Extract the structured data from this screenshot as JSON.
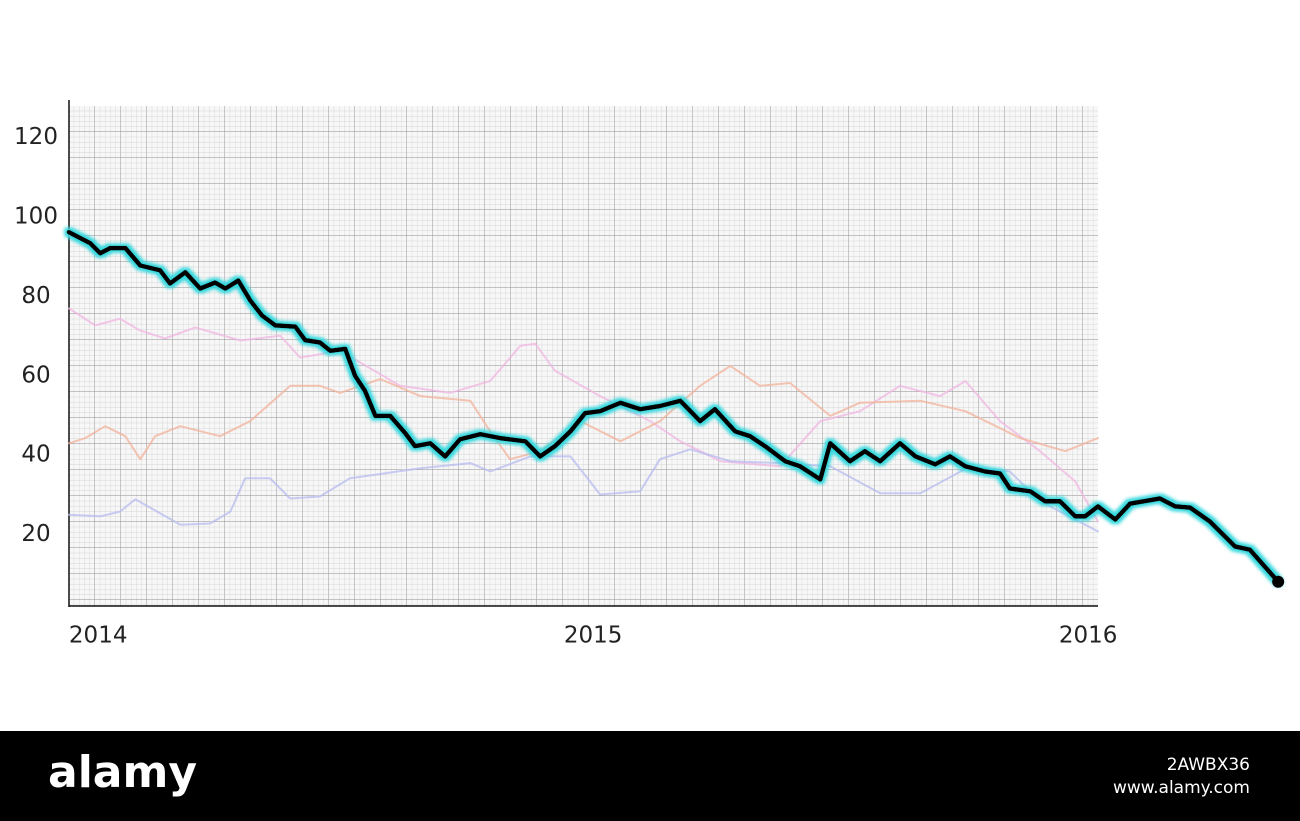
{
  "chart_data": {
    "type": "line",
    "xlim": [
      2013.941,
      2016.02
    ],
    "ylim": [
      2,
      128
    ],
    "xticks": [
      2014,
      2015,
      2016
    ],
    "yticks": [
      20,
      40,
      60,
      80,
      100,
      120
    ],
    "series": [
      {
        "color": "#f0b6e2",
        "x": [
          2013.941,
          2013.994,
          2014.044,
          2014.085,
          2014.135,
          2014.196,
          2014.287,
          2014.368,
          2014.408,
          2014.489,
          2014.61,
          2014.711,
          2014.792,
          2014.853,
          2014.883,
          2014.923,
          2015.014,
          2015.115,
          2015.176,
          2015.257,
          2015.378,
          2015.459,
          2015.539,
          2015.62,
          2015.701,
          2015.752,
          2015.822,
          2015.903,
          2015.974,
          2016.02
        ],
        "values": [
          77,
          72.7,
          74.4,
          71.4,
          69.4,
          72.2,
          68.9,
          70.1,
          64.6,
          66.3,
          57.5,
          55.7,
          58.7,
          67.6,
          68.1,
          61.3,
          54.9,
          48.6,
          43.5,
          38.5,
          37.2,
          48.6,
          51.1,
          57.5,
          54.9,
          58.7,
          48.6,
          41,
          33.4,
          23.3
        ]
      },
      {
        "color": "#f3b29a",
        "x": [
          2013.941,
          2013.974,
          2014.014,
          2014.055,
          2014.085,
          2014.115,
          2014.166,
          2014.246,
          2014.307,
          2014.388,
          2014.448,
          2014.489,
          2014.57,
          2014.651,
          2014.752,
          2014.792,
          2014.832,
          2014.893,
          2014.974,
          2015.055,
          2015.135,
          2015.216,
          2015.277,
          2015.337,
          2015.398,
          2015.479,
          2015.539,
          2015.661,
          2015.752,
          2015.863,
          2015.954,
          2016.02
        ],
        "values": [
          43,
          44.3,
          47.3,
          44.8,
          39,
          44.8,
          47.3,
          44.8,
          48.6,
          57.5,
          57.5,
          55.7,
          59.2,
          54.9,
          53.7,
          46,
          39,
          41,
          48.6,
          43.5,
          48.6,
          57.5,
          62.5,
          57.5,
          58.2,
          49.9,
          53.2,
          53.7,
          51.1,
          44.3,
          41,
          44.3
        ]
      },
      {
        "color": "#b7bbef",
        "x": [
          2013.941,
          2014.004,
          2014.044,
          2014.075,
          2014.166,
          2014.226,
          2014.267,
          2014.297,
          2014.347,
          2014.388,
          2014.448,
          2014.509,
          2014.651,
          2014.752,
          2014.792,
          2014.873,
          2014.954,
          2015.014,
          2015.095,
          2015.135,
          2015.196,
          2015.277,
          2015.378,
          2015.479,
          2015.58,
          2015.661,
          2015.762,
          2015.842,
          2015.903,
          2016.02
        ],
        "values": [
          25,
          24.6,
          25.8,
          28.9,
          22.5,
          22.8,
          25.8,
          34.2,
          34.2,
          29.1,
          29.6,
          34.2,
          36.7,
          38,
          35.9,
          39.7,
          39.7,
          30.1,
          30.9,
          39,
          41.5,
          38.5,
          38,
          37.2,
          30.4,
          30.4,
          37.2,
          35.9,
          28.4,
          20.8
        ]
      },
      {
        "color": "#000000",
        "glow": "#35d8de",
        "x": [
          2013.941,
          2013.984,
          2014.004,
          2014.024,
          2014.055,
          2014.085,
          2014.125,
          2014.145,
          2014.176,
          2014.206,
          2014.236,
          2014.257,
          2014.283,
          2014.307,
          2014.331,
          2014.358,
          2014.398,
          2014.418,
          2014.448,
          2014.469,
          2014.499,
          2014.519,
          2014.539,
          2014.56,
          2014.59,
          2014.62,
          2014.64,
          2014.671,
          2014.701,
          2014.731,
          2014.772,
          2014.812,
          2014.863,
          2014.893,
          2014.923,
          2014.954,
          2014.984,
          2015.014,
          2015.055,
          2015.095,
          2015.135,
          2015.176,
          2015.216,
          2015.246,
          2015.287,
          2015.317,
          2015.347,
          2015.388,
          2015.418,
          2015.459,
          2015.479,
          2015.519,
          2015.549,
          2015.58,
          2015.62,
          2015.651,
          2015.691,
          2015.721,
          2015.752,
          2015.792,
          2015.822,
          2015.842,
          2015.883,
          2015.913,
          2015.943,
          2015.974,
          2015.994,
          2016.02,
          2016.055,
          2016.085,
          2016.145,
          2016.176,
          2016.206,
          2016.246,
          2016.297,
          2016.327,
          2016.384
        ],
        "values": [
          96.2,
          93.4,
          90.9,
          92.2,
          92.2,
          87.8,
          86.6,
          83.3,
          86.1,
          82,
          83.5,
          82,
          84,
          79,
          75.2,
          72.7,
          72.4,
          69,
          68.4,
          66.3,
          66.8,
          60,
          56.2,
          49.9,
          49.9,
          45.6,
          42.3,
          43,
          39.7,
          44,
          45.3,
          44.3,
          43.5,
          39.7,
          42.3,
          46,
          50.6,
          51.1,
          53.2,
          51.6,
          52.4,
          53.7,
          48.6,
          51.6,
          46,
          44.8,
          42.3,
          38.5,
          37.2,
          33.9,
          43,
          38.5,
          41,
          38.5,
          43,
          39.7,
          37.7,
          39.7,
          37.2,
          35.9,
          35.4,
          31.6,
          30.9,
          28.4,
          28.4,
          24.6,
          24.6,
          27.1,
          23.8,
          27.8,
          29.1,
          27.1,
          26.8,
          23.3,
          17,
          16.2,
          8.1
        ]
      }
    ]
  },
  "footer": {
    "brand": "alamy",
    "url": "www.alamy.com",
    "id": "2AWBX36"
  }
}
